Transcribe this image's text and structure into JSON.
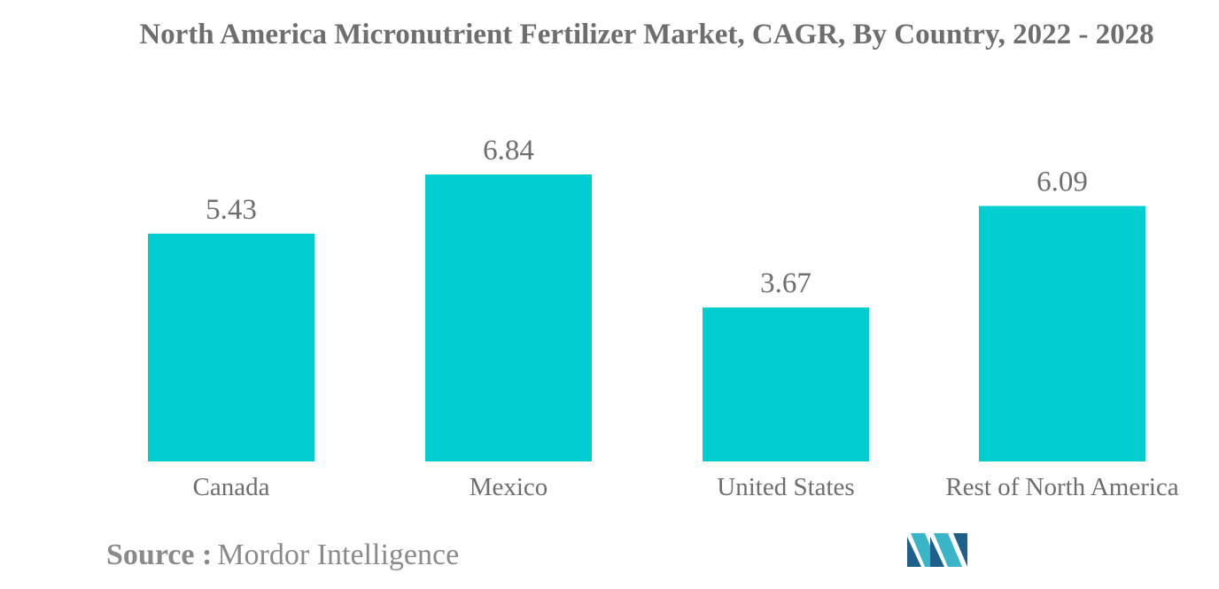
{
  "chart_data": {
    "type": "bar",
    "title": "North America Micronutrient Fertilizer Market, CAGR, By Country, 2022 - 2028",
    "categories": [
      "Canada",
      "Mexico",
      "United States",
      "Rest of North America"
    ],
    "values": [
      5.43,
      6.84,
      3.67,
      6.09
    ],
    "data_labels": [
      "5.43",
      "6.84",
      "3.67",
      "6.09"
    ],
    "xlabel": "",
    "ylabel": "",
    "ylim": [
      0,
      6.84
    ],
    "grid": false,
    "legend": "none",
    "bar_color": "#00ced1"
  },
  "source": {
    "label": "Source :",
    "value": "Mordor Intelligence"
  },
  "colors": {
    "title": "#6e6e6e",
    "label": "#6e6e6e",
    "source": "#8a8a8a",
    "logo_dark": "#1f5f8b",
    "logo_light": "#3ab5c8"
  }
}
